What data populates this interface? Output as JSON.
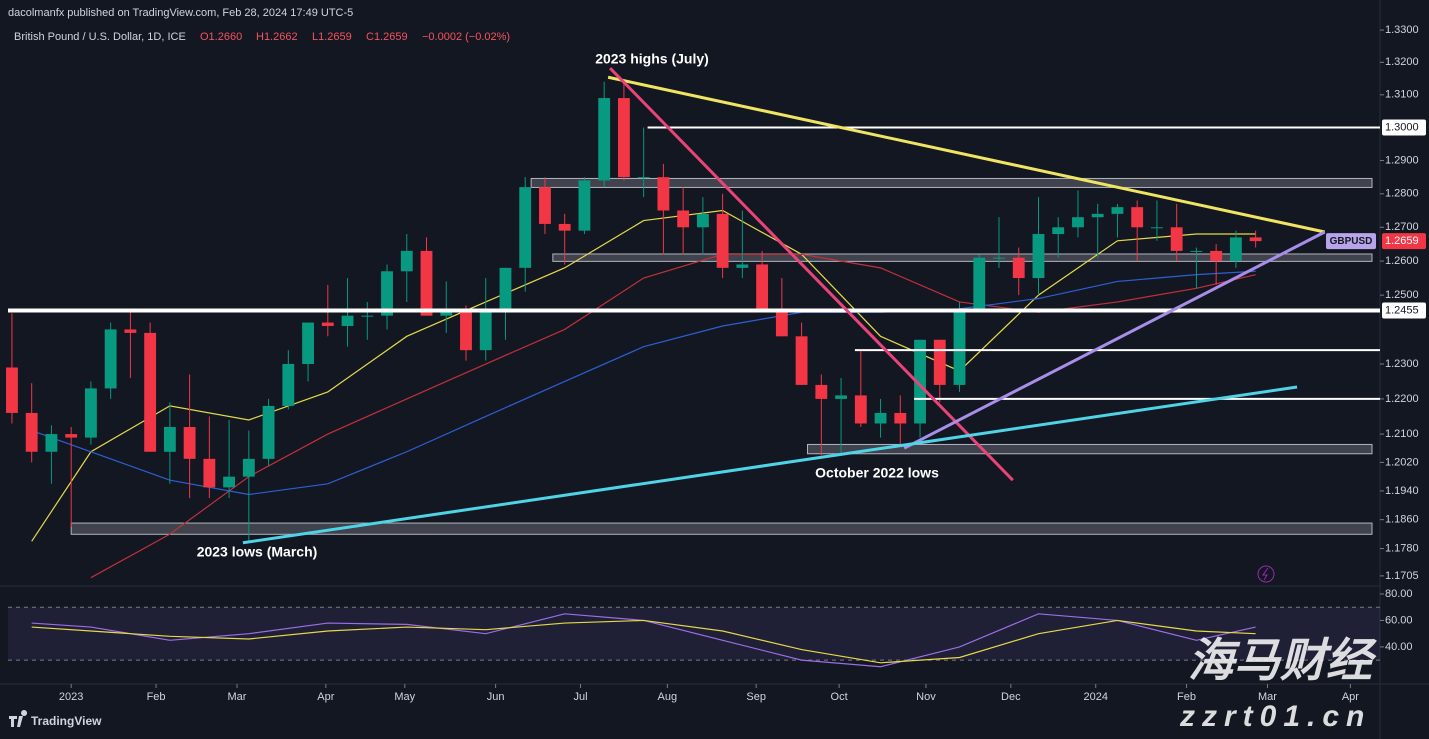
{
  "header": {
    "published": "dacolmanfx published on TradingView.com, Feb 28, 2024 17:49 UTC-5",
    "symbol": "British Pound / U.S. Dollar, 1D, ICE",
    "ohlc": [
      "O1.2660",
      "H1.2662",
      "L1.2659",
      "C1.2659",
      "−0.0002 (−0.02%)"
    ]
  },
  "footer": "TradingView",
  "watermark": [
    "海马财经",
    "zzrt01.cn"
  ],
  "chart_data": {
    "type": "candlestick",
    "log_scale": true,
    "grid": false,
    "up_color": "#089981",
    "down_color": "#f23645",
    "xlim": [
      -0.2,
      69.3
    ],
    "xticks": [
      {
        "value": 3,
        "label": "2023"
      },
      {
        "value": 7.3,
        "label": "Feb"
      },
      {
        "value": 11.4,
        "label": "Mar"
      },
      {
        "value": 15.9,
        "label": "Apr"
      },
      {
        "value": 19.9,
        "label": "May"
      },
      {
        "value": 24.5,
        "label": "Jun"
      },
      {
        "value": 28.8,
        "label": "Jul"
      },
      {
        "value": 33.2,
        "label": "Aug"
      },
      {
        "value": 37.7,
        "label": "Sep"
      },
      {
        "value": 41.9,
        "label": "Oct"
      },
      {
        "value": 46.3,
        "label": "Nov"
      },
      {
        "value": 50.6,
        "label": "Dec"
      },
      {
        "value": 54.9,
        "label": "2024"
      },
      {
        "value": 59.5,
        "label": "Feb"
      },
      {
        "value": 63.6,
        "label": "Mar"
      },
      {
        "value": 67.8,
        "label": "Apr"
      }
    ],
    "ylim": [
      1.168,
      1.3347
    ],
    "yticks": [
      {
        "value": 1.33,
        "label": "1.3300"
      },
      {
        "value": 1.32,
        "label": "1.3200"
      },
      {
        "value": 1.31,
        "label": "1.3100"
      },
      {
        "value": 1.29,
        "label": "1.2900"
      },
      {
        "value": 1.28,
        "label": "1.2800"
      },
      {
        "value": 1.27,
        "label": "1.2700"
      },
      {
        "value": 1.26,
        "label": "1.2600"
      },
      {
        "value": 1.25,
        "label": "1.2500"
      },
      {
        "value": 1.23,
        "label": "1.2300"
      },
      {
        "value": 1.22,
        "label": "1.2200"
      },
      {
        "value": 1.21,
        "label": "1.2100"
      },
      {
        "value": 1.202,
        "label": "1.2020"
      },
      {
        "value": 1.194,
        "label": "1.1940"
      },
      {
        "value": 1.186,
        "label": "1.1860"
      },
      {
        "value": 1.178,
        "label": "1.1780"
      },
      {
        "value": 1.1705,
        "label": "1.1705"
      }
    ],
    "open": [
      1.229,
      1.216,
      1.205,
      1.21,
      1.209,
      1.223,
      1.24,
      1.239,
      1.205,
      1.212,
      1.203,
      1.195,
      1.198,
      1.203,
      1.218,
      1.23,
      1.242,
      1.241,
      1.244,
      1.244,
      1.257,
      1.263,
      1.244,
      1.245,
      1.234,
      1.245,
      1.258,
      1.282,
      1.271,
      1.269,
      1.284,
      1.309,
      1.285,
      1.285,
      1.275,
      1.27,
      1.274,
      1.258,
      1.259,
      1.246,
      1.238,
      1.224,
      1.22,
      1.221,
      1.213,
      1.216,
      1.213,
      1.237,
      1.224,
      1.246,
      1.261,
      1.261,
      1.255,
      1.268,
      1.27,
      1.273,
      1.274,
      1.276,
      1.27,
      1.27,
      1.263,
      1.263,
      1.26,
      1.267
    ],
    "high": [
      1.2447,
      1.2245,
      1.2125,
      1.212,
      1.225,
      1.242,
      1.245,
      1.242,
      1.219,
      1.227,
      1.215,
      1.214,
      1.211,
      1.22,
      1.234,
      1.242,
      1.253,
      1.255,
      1.248,
      1.259,
      1.268,
      1.267,
      1.254,
      1.247,
      1.255,
      1.258,
      1.285,
      1.285,
      1.274,
      1.285,
      1.314,
      1.314,
      1.3,
      1.289,
      1.282,
      1.279,
      1.28,
      1.275,
      1.263,
      1.255,
      1.242,
      1.227,
      1.226,
      1.234,
      1.22,
      1.221,
      1.237,
      1.237,
      1.248,
      1.262,
      1.273,
      1.264,
      1.279,
      1.273,
      1.281,
      1.277,
      1.277,
      1.278,
      1.278,
      1.277,
      1.264,
      1.265,
      1.269,
      1.269
    ],
    "low": [
      1.213,
      1.202,
      1.196,
      1.184,
      1.207,
      1.22,
      1.226,
      1.205,
      1.196,
      1.192,
      1.192,
      1.192,
      1.18,
      1.201,
      1.217,
      1.225,
      1.238,
      1.235,
      1.237,
      1.24,
      1.248,
      1.244,
      1.239,
      1.231,
      1.231,
      1.237,
      1.251,
      1.268,
      1.259,
      1.268,
      1.282,
      1.284,
      1.279,
      1.262,
      1.262,
      1.262,
      1.255,
      1.255,
      1.245,
      1.238,
      1.224,
      1.204,
      1.204,
      1.212,
      1.209,
      1.207,
      1.209,
      1.219,
      1.222,
      1.245,
      1.258,
      1.25,
      1.25,
      1.261,
      1.267,
      1.261,
      1.267,
      1.26,
      1.266,
      1.26,
      1.252,
      1.253,
      1.258,
      1.264
    ],
    "close": [
      1.216,
      1.205,
      1.21,
      1.209,
      1.223,
      1.24,
      1.239,
      1.205,
      1.212,
      1.203,
      1.195,
      1.198,
      1.203,
      1.218,
      1.23,
      1.242,
      1.241,
      1.244,
      1.244,
      1.257,
      1.263,
      1.244,
      1.245,
      1.234,
      1.245,
      1.258,
      1.282,
      1.271,
      1.269,
      1.284,
      1.309,
      1.285,
      1.285,
      1.275,
      1.27,
      1.274,
      1.258,
      1.259,
      1.246,
      1.238,
      1.224,
      1.22,
      1.221,
      1.213,
      1.216,
      1.213,
      1.237,
      1.224,
      1.246,
      1.261,
      1.261,
      1.255,
      1.268,
      1.27,
      1.273,
      1.274,
      1.276,
      1.27,
      1.27,
      1.263,
      1.263,
      1.26,
      1.267,
      1.2659
    ],
    "moving_averages": [
      {
        "color": "#e6d84a",
        "x": [
          1,
          4,
          8,
          12,
          16,
          20,
          24,
          28,
          32,
          36,
          40,
          44,
          48,
          52,
          56,
          60,
          63
        ],
        "values": [
          1.18,
          1.205,
          1.218,
          1.214,
          1.222,
          1.238,
          1.248,
          1.258,
          1.272,
          1.275,
          1.262,
          1.238,
          1.228,
          1.25,
          1.266,
          1.268,
          1.268
        ]
      },
      {
        "color": "#c2303a",
        "x": [
          1,
          4,
          8,
          12,
          16,
          20,
          24,
          28,
          32,
          36,
          40,
          44,
          48,
          52,
          56,
          60,
          63
        ],
        "values": [
          null,
          1.17,
          1.182,
          1.198,
          1.21,
          1.22,
          1.23,
          1.24,
          1.255,
          1.262,
          1.262,
          1.258,
          1.248,
          1.245,
          1.248,
          1.252,
          1.256
        ]
      },
      {
        "color": "#2d5fd4",
        "x": [
          1,
          4,
          8,
          12,
          16,
          20,
          24,
          28,
          32,
          36,
          40,
          44,
          48,
          52,
          56,
          60,
          63
        ],
        "values": [
          1.211,
          1.205,
          1.197,
          1.193,
          1.196,
          1.205,
          1.215,
          1.225,
          1.235,
          1.241,
          1.245,
          1.245,
          1.246,
          1.249,
          1.254,
          1.256,
          1.257
        ]
      }
    ],
    "zones": [
      {
        "range": [
          1.284,
          1.2825
        ],
        "from": 26.3
      },
      {
        "range": [
          1.2615,
          1.2605
        ],
        "from": 27.4
      },
      {
        "range": [
          1.2065,
          1.205
        ],
        "from": 40.3
      },
      {
        "range": [
          1.1845,
          1.1825
        ],
        "from": 3.0
      }
    ],
    "levels": [
      {
        "value": 1.3,
        "label": "1.3000",
        "from": 32.2
      },
      {
        "value": 1.2455,
        "label": "1.2455",
        "from": -0.2
      },
      {
        "value": 1.234,
        "from": 42.7
      },
      {
        "value": 1.22,
        "from": 45.7
      }
    ],
    "trendlines": [
      {
        "color": "#f0e463",
        "x": [
          30.2,
          66.5
        ],
        "values": [
          1.3154,
          1.2686
        ]
      },
      {
        "color": "#e8447a",
        "x": [
          30.3,
          50.7
        ],
        "values": [
          1.3182,
          1.197
        ]
      },
      {
        "color": "#a88ee8",
        "x": [
          45.2,
          66.5
        ],
        "values": [
          1.206,
          1.2686
        ]
      },
      {
        "color": "#4fd3e6",
        "x": [
          11.7,
          65.1
        ],
        "values": [
          1.1796,
          1.2234
        ]
      }
    ],
    "last_price": {
      "symbol": "GBPUSD",
      "value": 1.2659,
      "label": "1.2659"
    },
    "annotations": [
      "2023 highs (July)",
      "October 2022 lows",
      "2023 lows (March)"
    ],
    "rsi": {
      "ylim": [
        15,
        84.5
      ],
      "yticks": [
        {
          "value": 80,
          "label": "80.00"
        },
        {
          "value": 60,
          "label": "60.00"
        },
        {
          "value": 40,
          "label": "40.00"
        }
      ],
      "band": [
        70,
        30
      ],
      "x": [
        1,
        4,
        8,
        12,
        16,
        20,
        24,
        28,
        32,
        36,
        40,
        44,
        48,
        52,
        56,
        60,
        63
      ],
      "lines": [
        {
          "color": "#9a6ee6",
          "values": [
            58,
            55,
            45,
            50,
            58,
            57,
            50,
            65,
            60,
            45,
            30,
            25,
            40,
            65,
            60,
            45,
            55
          ]
        },
        {
          "color": "#e6d84a",
          "values": [
            55,
            52,
            48,
            46,
            52,
            55,
            53,
            58,
            60,
            52,
            38,
            28,
            32,
            50,
            60,
            52,
            50
          ]
        }
      ]
    }
  }
}
